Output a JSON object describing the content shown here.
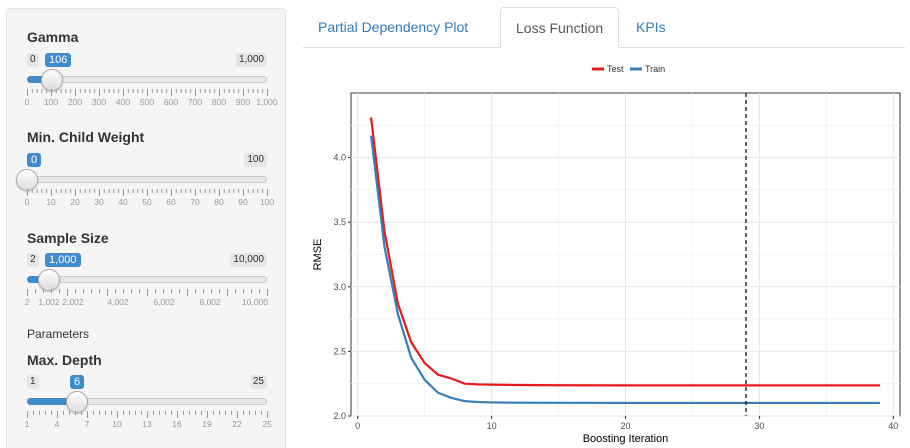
{
  "sidebar": {
    "gamma": {
      "label": "Gamma",
      "min_label": "0",
      "max_label": "1,000",
      "value_label": "106",
      "value": 106,
      "min": 0,
      "max": 1000,
      "ticks": [
        "0",
        "100",
        "200",
        "300",
        "400",
        "500",
        "600",
        "700",
        "800",
        "900",
        "1,000"
      ]
    },
    "min_child_weight": {
      "label": "Min. Child Weight",
      "min_label": "0",
      "max_label": "100",
      "value_label": "0",
      "value": 0,
      "min": 0,
      "max": 100,
      "ticks": [
        "0",
        "10",
        "20",
        "30",
        "40",
        "50",
        "60",
        "70",
        "80",
        "90",
        "100"
      ]
    },
    "sample_size": {
      "label": "Sample Size",
      "min_label": "2",
      "max_label": "10,000",
      "value_label": "1,000",
      "value": 1000,
      "min": 2,
      "max": 10000,
      "ticks": [
        "2",
        "1,002",
        "2,002",
        "4,002",
        "6,002",
        "8,002",
        "10,000"
      ]
    },
    "parameters_label": "Parameters",
    "max_depth": {
      "label": "Max. Depth",
      "min_label": "1",
      "max_label": "25",
      "value_label": "6",
      "value": 6,
      "min": 1,
      "max": 25,
      "ticks": [
        "1",
        "4",
        "7",
        "10",
        "13",
        "16",
        "19",
        "22",
        "25"
      ]
    }
  },
  "tabs": [
    {
      "label": "Partial Dependency Plot",
      "active": false
    },
    {
      "label": "Loss Function",
      "active": true
    },
    {
      "label": "KPIs",
      "active": false
    }
  ],
  "colors": {
    "test": "#e41a1c",
    "train": "#377eb8",
    "accent": "#428bca",
    "tab_link": "#337ab7"
  },
  "chart_data": {
    "type": "line",
    "xlabel": "Boosting Iteration",
    "ylabel": "RMSE",
    "xlim": [
      -0.5,
      40.5
    ],
    "ylim": [
      2.0,
      4.5
    ],
    "x_ticks": [
      0,
      10,
      20,
      30,
      40
    ],
    "y_ticks": [
      2.0,
      2.5,
      3.0,
      3.5,
      4.0
    ],
    "x_tick_labels": [
      "0",
      "10",
      "20",
      "30",
      "40"
    ],
    "y_tick_labels": [
      "2.0",
      "2.5",
      "3.0",
      "3.5",
      "4.0"
    ],
    "vline": 29,
    "legend_position": "top",
    "grid": true,
    "series": [
      {
        "name": "Test",
        "color": "#e41a1c",
        "x": [
          1,
          2,
          3,
          4,
          5,
          6,
          7,
          8,
          9,
          10,
          12,
          15,
          20,
          25,
          30,
          35,
          39
        ],
        "y": [
          4.31,
          3.43,
          2.87,
          2.57,
          2.41,
          2.32,
          2.29,
          2.25,
          2.245,
          2.243,
          2.24,
          2.238,
          2.237,
          2.237,
          2.237,
          2.237,
          2.237
        ]
      },
      {
        "name": "Train",
        "color": "#377eb8",
        "x": [
          1,
          2,
          3,
          4,
          5,
          6,
          7,
          8,
          9,
          10,
          12,
          15,
          20,
          25,
          30,
          35,
          39
        ],
        "y": [
          4.17,
          3.31,
          2.79,
          2.45,
          2.28,
          2.18,
          2.14,
          2.115,
          2.108,
          2.105,
          2.103,
          2.102,
          2.101,
          2.101,
          2.101,
          2.101,
          2.101
        ]
      }
    ]
  }
}
